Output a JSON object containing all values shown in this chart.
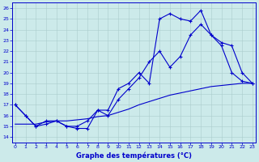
{
  "title": "Graphe des températures (°C)",
  "bg_color": "#cceaea",
  "line_color": "#0000cc",
  "xlim": [
    -0.3,
    23.3
  ],
  "ylim": [
    13.5,
    26.5
  ],
  "yticks": [
    14,
    15,
    16,
    17,
    18,
    19,
    20,
    21,
    22,
    23,
    24,
    25,
    26
  ],
  "xticks": [
    0,
    1,
    2,
    3,
    4,
    5,
    6,
    7,
    8,
    9,
    10,
    11,
    12,
    13,
    14,
    15,
    16,
    17,
    18,
    19,
    20,
    21,
    22,
    23
  ],
  "line1_x": [
    0,
    1,
    2,
    3,
    4,
    5,
    6,
    7,
    8,
    9,
    10,
    11,
    12,
    13,
    14,
    15,
    16,
    17,
    18,
    19,
    20,
    21,
    22,
    23
  ],
  "line1_y": [
    17.0,
    16.0,
    15.0,
    15.2,
    15.5,
    15.0,
    14.8,
    14.8,
    16.5,
    16.5,
    18.5,
    19.0,
    20.0,
    19.0,
    25.0,
    25.5,
    25.0,
    24.8,
    25.8,
    23.5,
    22.5,
    20.0,
    19.2,
    19.0
  ],
  "line2_x": [
    0,
    1,
    2,
    3,
    4,
    5,
    6,
    7,
    8,
    9,
    10,
    11,
    12,
    13,
    14,
    15,
    16,
    17,
    18,
    19,
    20,
    21,
    22,
    23
  ],
  "line2_y": [
    17.0,
    16.0,
    15.0,
    15.5,
    15.5,
    15.0,
    15.0,
    15.5,
    16.5,
    16.0,
    17.5,
    18.5,
    19.5,
    21.0,
    22.0,
    20.5,
    21.5,
    23.5,
    24.5,
    23.5,
    22.8,
    22.5,
    20.0,
    19.0
  ],
  "line3_x": [
    0,
    1,
    2,
    3,
    4,
    5,
    6,
    7,
    8,
    9,
    10,
    11,
    12,
    13,
    14,
    15,
    16,
    17,
    18,
    19,
    20,
    21,
    22,
    23
  ],
  "line3_y": [
    15.2,
    15.2,
    15.2,
    15.4,
    15.5,
    15.5,
    15.6,
    15.7,
    15.9,
    16.0,
    16.3,
    16.6,
    17.0,
    17.3,
    17.6,
    17.9,
    18.1,
    18.3,
    18.5,
    18.7,
    18.8,
    18.9,
    19.0,
    19.0
  ]
}
